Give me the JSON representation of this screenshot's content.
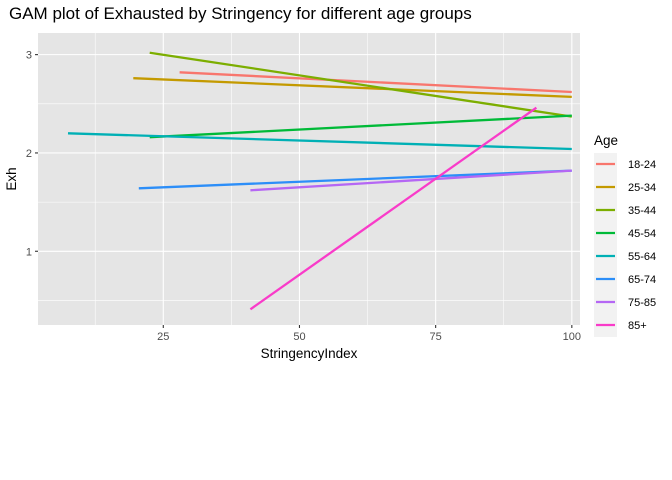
{
  "chart_data": {
    "type": "line",
    "title": "GAM plot of Exhausted by Stringency for different age groups",
    "xlabel": "StringencyIndex",
    "ylabel": "Exh",
    "xlim": [
      2,
      101.5
    ],
    "ylim": [
      0.25,
      3.22
    ],
    "x_ticks": [
      25,
      50,
      75,
      100
    ],
    "y_ticks": [
      1,
      2,
      3
    ],
    "grid": true,
    "background": "#E5E5E5",
    "gridline_color": "#FFFFFF",
    "legend": {
      "title": "Age",
      "position": "right"
    },
    "series": [
      {
        "name": "18-24",
        "color": "#F8766D",
        "x": [
          28,
          100
        ],
        "y": [
          2.82,
          2.62
        ]
      },
      {
        "name": "25-34",
        "color": "#C49A00",
        "x": [
          19.5,
          100
        ],
        "y": [
          2.76,
          2.57
        ]
      },
      {
        "name": "35-44",
        "color": "#7CAE00",
        "x": [
          22.5,
          100
        ],
        "y": [
          3.02,
          2.37
        ]
      },
      {
        "name": "45-54",
        "color": "#00BA38",
        "x": [
          22.5,
          100
        ],
        "y": [
          2.16,
          2.38
        ]
      },
      {
        "name": "55-64",
        "color": "#00B0B5",
        "x": [
          7.5,
          100
        ],
        "y": [
          2.2,
          2.04
        ]
      },
      {
        "name": "65-74",
        "color": "#2C8EF8",
        "x": [
          20.5,
          100
        ],
        "y": [
          1.64,
          1.82
        ]
      },
      {
        "name": "75-85",
        "color": "#B567F4",
        "x": [
          41,
          100
        ],
        "y": [
          1.62,
          1.82
        ]
      },
      {
        "name": "85+",
        "color": "#F93BC9",
        "x": [
          41,
          93.5
        ],
        "y": [
          0.41,
          2.46
        ]
      }
    ]
  }
}
